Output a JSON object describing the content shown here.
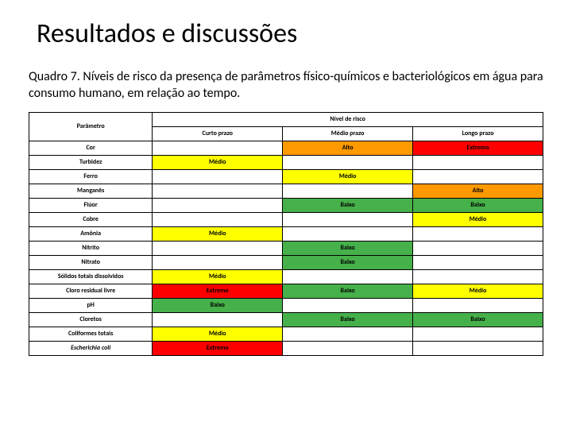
{
  "title": "Resultados e discussões",
  "caption": "Quadro 7. Níveis de risco da presença de parâmetros físico-químicos e bacteriológicos em água para consumo humano, em relação ao tempo.",
  "table": {
    "header": {
      "param": "Parâmetro",
      "risk_group": "Nível de risco",
      "cols": [
        "Curto prazo",
        "Médio prazo",
        "Longo prazo"
      ]
    },
    "colors": {
      "baixo": "#46b04a",
      "medio": "#ffff00",
      "alto": "#ff9900",
      "extremo": "#ff0000",
      "blank": "#ffffff"
    },
    "levels": {
      "baixo": "Baixo",
      "medio": "Médio",
      "alto": "Alto",
      "extremo": "Extremo"
    },
    "rows": [
      {
        "param": "Cor",
        "cells": [
          null,
          "alto",
          "extremo"
        ]
      },
      {
        "param": "Turbidez",
        "cells": [
          "medio",
          null,
          null
        ]
      },
      {
        "param": "Ferro",
        "cells": [
          null,
          "medio",
          null
        ]
      },
      {
        "param": "Manganês",
        "cells": [
          null,
          null,
          "alto"
        ]
      },
      {
        "param": "Flúor",
        "cells": [
          null,
          "baixo",
          "baixo"
        ]
      },
      {
        "param": "Cobre",
        "cells": [
          null,
          null,
          "medio"
        ]
      },
      {
        "param": "Amônia",
        "cells": [
          "medio",
          null,
          null
        ]
      },
      {
        "param": "Nitrito",
        "cells": [
          null,
          "baixo",
          null
        ]
      },
      {
        "param": "Nitrato",
        "cells": [
          null,
          "baixo",
          null
        ]
      },
      {
        "param": "Sólidos totais dissolvidos",
        "cells": [
          "medio",
          null,
          null
        ]
      },
      {
        "param": "Cloro residual livre",
        "cells": [
          "extremo",
          "baixo",
          "medio"
        ]
      },
      {
        "param": "pH",
        "cells": [
          "baixo",
          null,
          null
        ]
      },
      {
        "param": "Cloretos",
        "cells": [
          null,
          "baixo",
          "baixo"
        ]
      },
      {
        "param": "Coliformes totais",
        "cells": [
          "medio",
          null,
          null
        ]
      },
      {
        "param": "Escherichia coli",
        "cells": [
          "extremo",
          null,
          null
        ],
        "italic": true
      }
    ]
  }
}
